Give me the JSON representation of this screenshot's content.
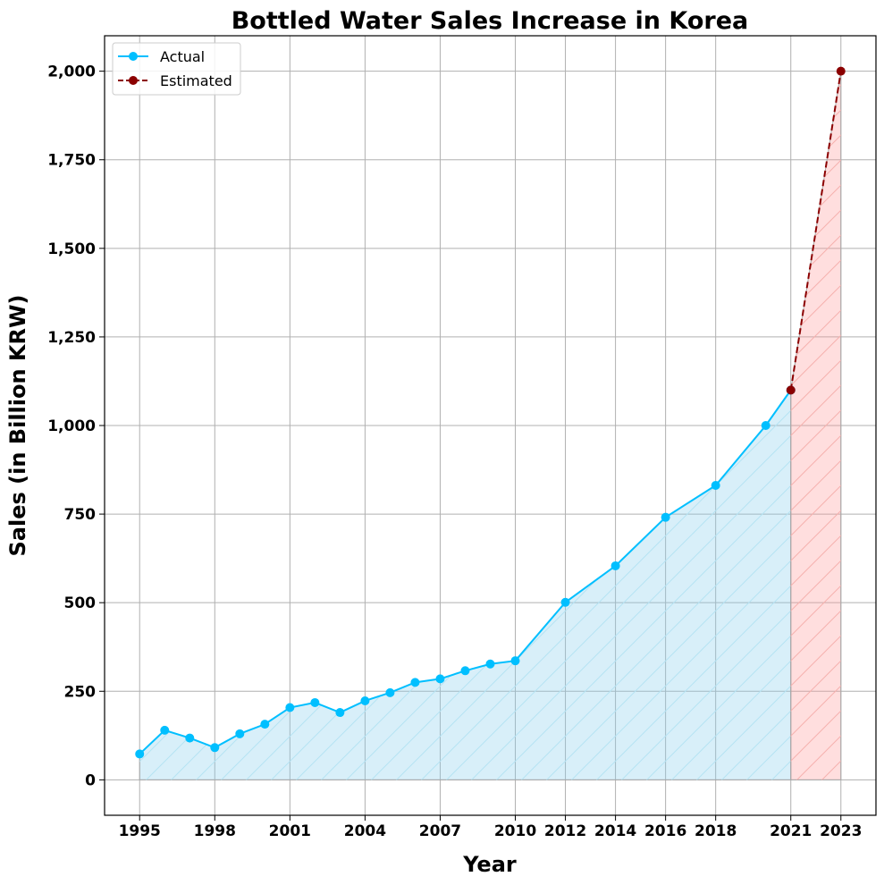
{
  "chart_data": {
    "type": "line",
    "title": "Bottled Water Sales Increase in Korea",
    "xlabel": "Year",
    "ylabel": "Sales (in Billion KRW)",
    "xlim": [
      1993.6,
      2024.4
    ],
    "ylim": [
      -100,
      2100
    ],
    "x_ticks": [
      1995,
      1998,
      2001,
      2004,
      2007,
      2010,
      2012,
      2014,
      2016,
      2018,
      2021,
      2023
    ],
    "y_ticks": [
      0,
      250,
      500,
      750,
      1000,
      1250,
      1500,
      1750,
      2000
    ],
    "y_tick_labels": [
      "0",
      "250",
      "500",
      "750",
      "1,000",
      "1,250",
      "1,500",
      "1,750",
      "2,000"
    ],
    "grid": true,
    "legend_position": "top-left",
    "series": [
      {
        "name": "Actual",
        "color": "#00bfff",
        "fill_color": "#87ceeb",
        "line_style": "solid",
        "x": [
          1995,
          1996,
          1997,
          1998,
          1999,
          2000,
          2001,
          2002,
          2003,
          2004,
          2005,
          2006,
          2007,
          2008,
          2009,
          2010,
          2012,
          2014,
          2016,
          2018,
          2020,
          2021
        ],
        "values": [
          73,
          140,
          118,
          91,
          130,
          157,
          204,
          218,
          190,
          223,
          246,
          275,
          285,
          308,
          327,
          336,
          501,
          604,
          741,
          831,
          1000,
          1100
        ]
      },
      {
        "name": "Estimated",
        "color": "#8b0000",
        "fill_color": "#ff9999",
        "line_style": "dashed",
        "x": [
          2021,
          2023
        ],
        "values": [
          1100,
          2000
        ]
      }
    ]
  }
}
